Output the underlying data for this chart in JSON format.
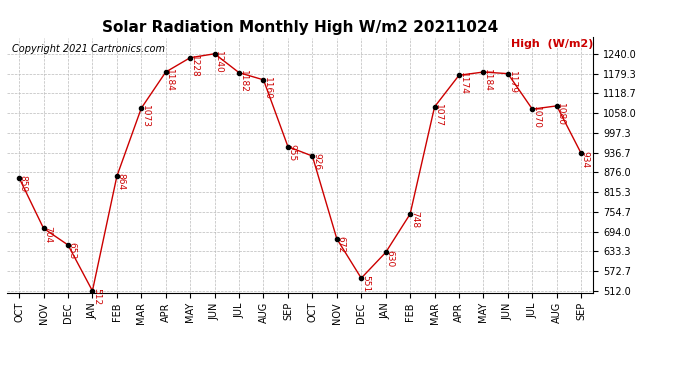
{
  "title": "Solar Radiation Monthly High W/m2 20211024",
  "copyright": "Copyright 2021 Cartronics.com",
  "legend_label": "High  (W/m2)",
  "x_labels": [
    "OCT",
    "NOV",
    "DEC",
    "JAN",
    "FEB",
    "MAR",
    "APR",
    "MAY",
    "JUN",
    "JUL",
    "AUG",
    "SEP",
    "OCT",
    "NOV",
    "DEC",
    "JAN",
    "FEB",
    "MAR",
    "APR",
    "MAY",
    "JUN",
    "JUL",
    "AUG",
    "SEP"
  ],
  "y_values": [
    859,
    704,
    653,
    512,
    864,
    1073,
    1184,
    1228,
    1240,
    1182,
    1160,
    955,
    926,
    672,
    551,
    630,
    748,
    1077,
    1174,
    1184,
    1179,
    1070,
    1080,
    934
  ],
  "ylim_min": 512.0,
  "ylim_max": 1240.0,
  "ytick_values": [
    512.0,
    572.7,
    633.3,
    694.0,
    754.7,
    815.3,
    876.0,
    936.7,
    997.3,
    1058.0,
    1118.7,
    1179.3,
    1240.0
  ],
  "line_color": "#cc0000",
  "marker_color": "#000000",
  "marker_size": 3,
  "grid_color": "#bbbbbb",
  "background_color": "#ffffff",
  "title_fontsize": 11,
  "label_fontsize": 7,
  "annotation_fontsize": 6.5,
  "annotation_color": "#cc0000",
  "legend_color": "#cc0000",
  "copyright_fontsize": 7
}
